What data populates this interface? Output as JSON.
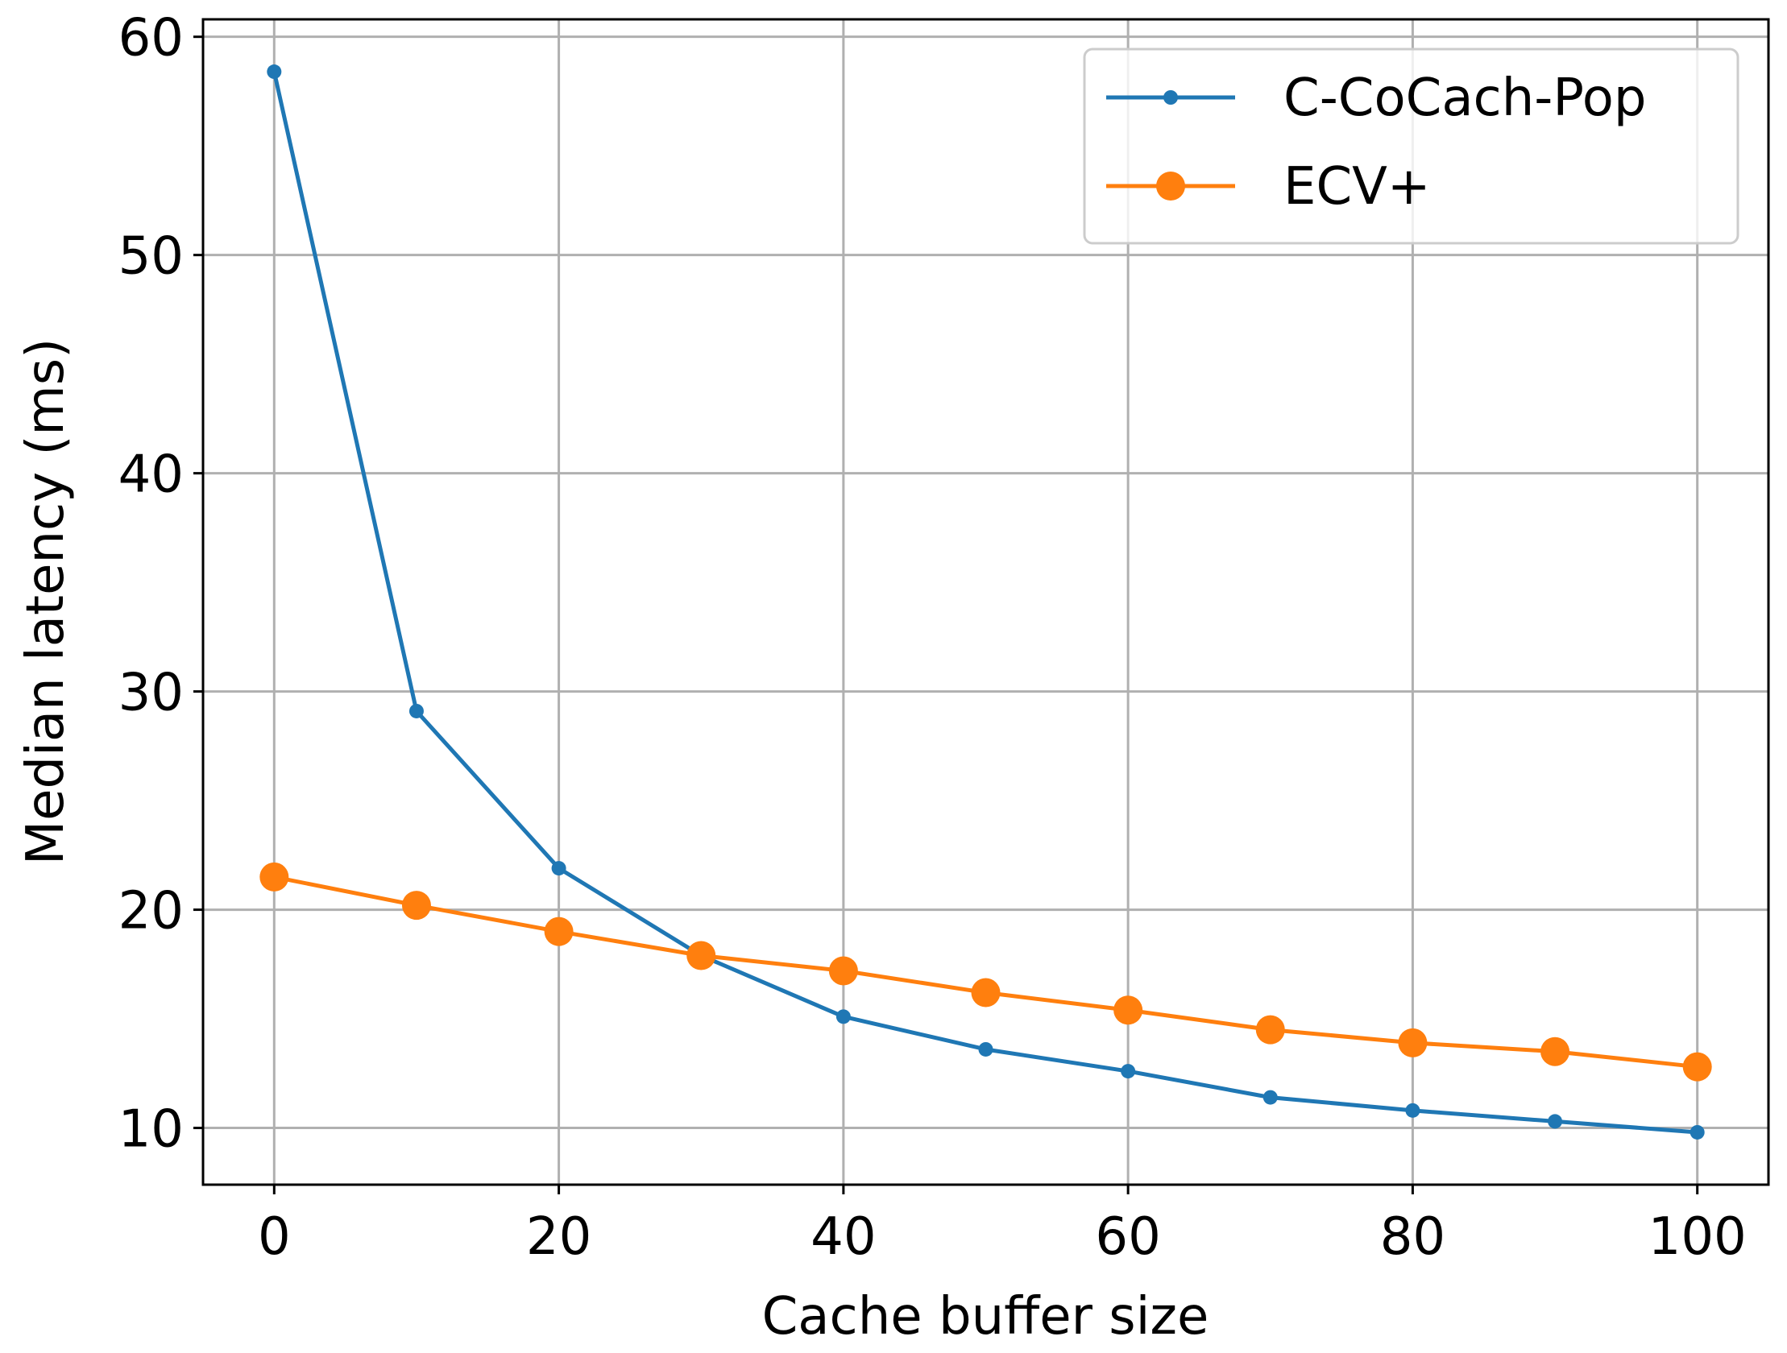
{
  "chart_data": {
    "type": "line",
    "xlabel": "Cache buffer size",
    "ylabel": "Median latency (ms)",
    "xlim": [
      -5,
      105
    ],
    "ylim": [
      7.4,
      60.8
    ],
    "xticks": [
      0,
      20,
      40,
      60,
      80,
      100
    ],
    "yticks": [
      10,
      20,
      30,
      40,
      50,
      60
    ],
    "grid": true,
    "legend_position": "top-right",
    "x": [
      0,
      10,
      20,
      30,
      40,
      50,
      60,
      70,
      80,
      90,
      100
    ],
    "series": [
      {
        "name": "C-CoCach-Pop",
        "color": "#1f77b4",
        "marker": "small-dot",
        "values": [
          58.4,
          29.1,
          21.9,
          17.9,
          15.1,
          13.6,
          12.6,
          11.4,
          10.8,
          10.3,
          9.8
        ]
      },
      {
        "name": "ECV+",
        "color": "#ff7f0e",
        "marker": "large-dot",
        "values": [
          21.5,
          20.2,
          19.0,
          17.9,
          17.2,
          16.2,
          15.4,
          14.5,
          13.9,
          13.5,
          12.8
        ]
      }
    ]
  }
}
